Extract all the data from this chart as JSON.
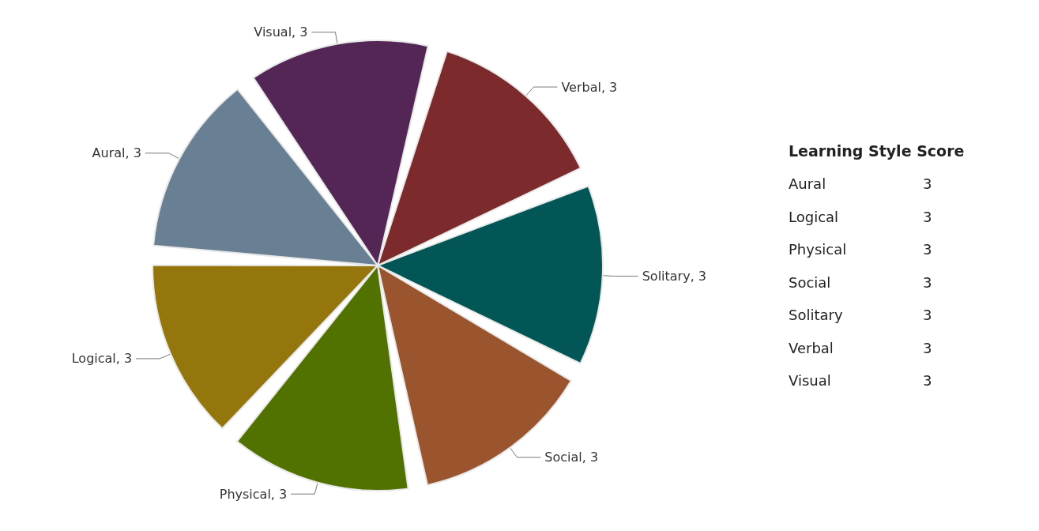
{
  "chart_data": [
    {
      "type": "pie",
      "categories": [
        "Aural",
        "Logical",
        "Physical",
        "Social",
        "Solitary",
        "Verbal",
        "Visual"
      ],
      "values": [
        3,
        3,
        3,
        3,
        3,
        3,
        3
      ],
      "colors": [
        "#687f94",
        "#94760c",
        "#527200",
        "#9a552e",
        "#025756",
        "#7d2a2d",
        "#532655"
      ],
      "value_labels": [
        ", 3",
        ", 3",
        ", 3",
        ", 3",
        ", 3",
        ", 3",
        ", 3"
      ]
    },
    {
      "type": "other",
      "title": "Learning Style Score",
      "categories": [
        "Aural",
        "Logical",
        "Physical",
        "Social",
        "Solitary",
        "Verbal",
        "Visual"
      ],
      "values": [
        3,
        3,
        3,
        3,
        3,
        3,
        3
      ],
      "data_labels": true
    }
  ]
}
